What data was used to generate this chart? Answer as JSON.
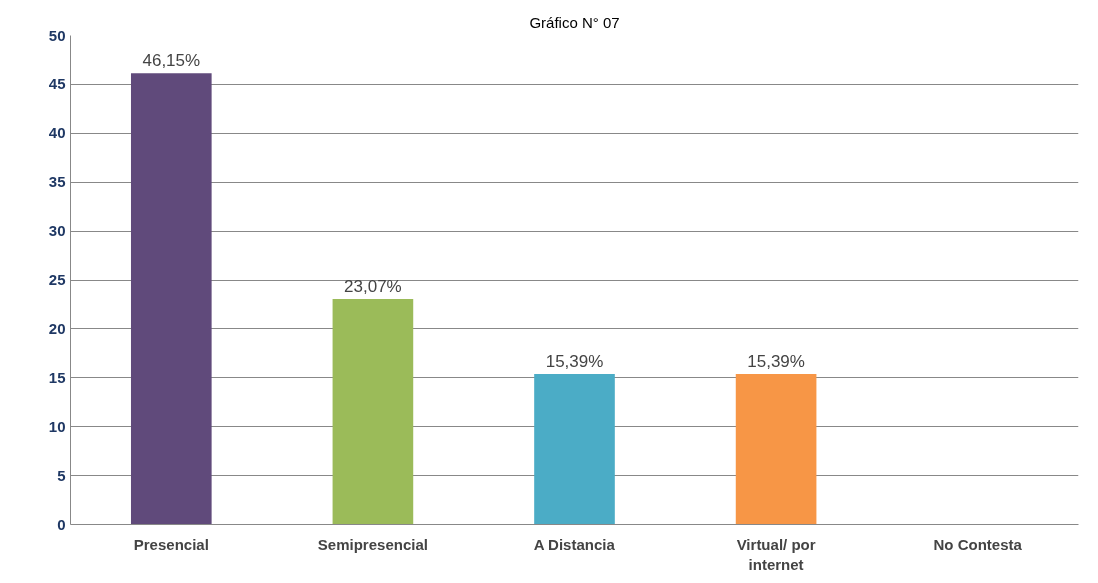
{
  "chart_data": {
    "type": "bar",
    "title": "Gráfico N° 07",
    "categories": [
      "Presencial",
      "Semipresencial",
      "A Distancia",
      "Virtual/ por\ninternet",
      "No Contesta"
    ],
    "values": [
      46.15,
      23.07,
      15.39,
      15.39,
      0
    ],
    "colors": [
      "#604a7b",
      "#9bbb59",
      "#4bacc6",
      "#f79646",
      "#4f81bd"
    ],
    "value_labels": [
      "46,15%",
      "23,07%",
      "15,39%",
      "15,39%",
      null
    ],
    "ylim": [
      0,
      50
    ],
    "yticks": [
      0,
      5,
      10,
      15,
      20,
      25,
      30,
      35,
      40,
      45,
      50
    ],
    "grid": "y"
  }
}
